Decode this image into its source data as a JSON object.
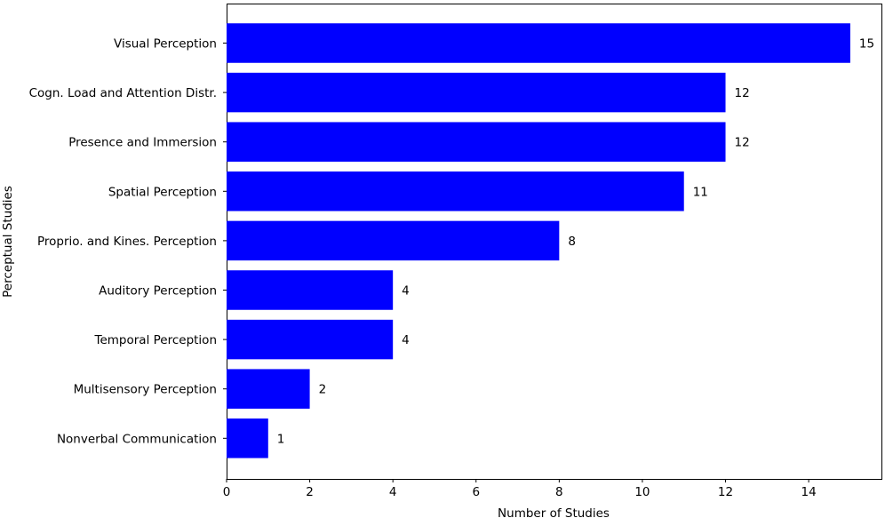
{
  "chart_data": {
    "type": "bar",
    "orientation": "horizontal",
    "title": "",
    "xlabel": "Number of Studies",
    "ylabel": "Perceptual Studies",
    "xlim": [
      0,
      15.75
    ],
    "xticks": [
      0,
      2,
      4,
      6,
      8,
      10,
      12,
      14
    ],
    "grid": false,
    "bar_color": "#0000ff",
    "categories": [
      "Visual Perception",
      "Cogn. Load and Attention Distr.",
      "Presence and Immersion",
      "Spatial Perception",
      "Proprio. and Kines. Perception",
      "Auditory Perception",
      "Temporal Perception",
      "Multisensory Perception",
      "Nonverbal Communication"
    ],
    "values": [
      15,
      12,
      12,
      11,
      8,
      4,
      4,
      2,
      1
    ],
    "data_labels": [
      "15",
      "12",
      "12",
      "11",
      "8",
      "4",
      "4",
      "2",
      "1"
    ]
  }
}
